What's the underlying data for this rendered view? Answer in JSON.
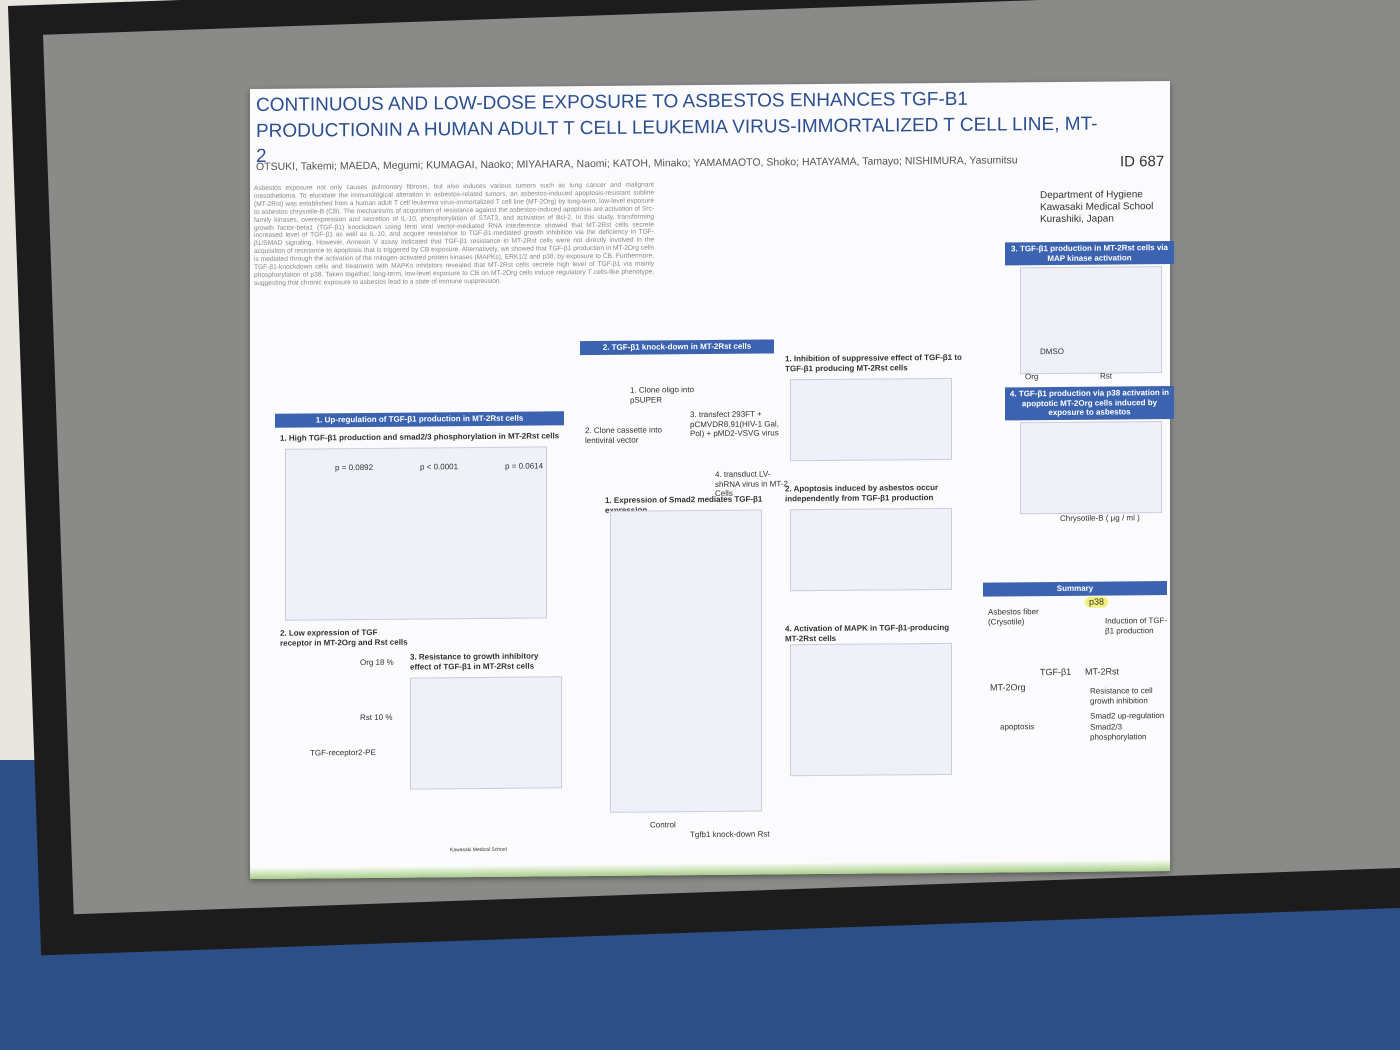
{
  "poster": {
    "title": "CONTINUOUS AND LOW-DOSE EXPOSURE TO ASBESTOS ENHANCES TGF-B1 PRODUCTIONIN A HUMAN ADULT T CELL LEUKEMIA VIRUS-IMMORTALIZED T CELL LINE, MT-2",
    "id": "ID 687",
    "authors": "OTSUKI, Takemi; MAEDA, Megumi; KUMAGAI, Naoko; MIYAHARA, Naomi; KATOH, Minako; YAMAMAOTO, Shoko; HATAYAMA, Tamayo; NISHIMURA, Yasumitsu",
    "affiliation": [
      "Department of Hygiene",
      "Kawasaki Medical School",
      "Kurashiki, Japan"
    ],
    "abstract": "Asbestos exposure not only causes pulmonary fibrosis, but also induces various tumors such as lung cancer and malignant mesothelioma. To elucidate the immunological alteration in asbestos-related tumors, an asbestos-induced apoptosis-resistant subline (MT-2Rst) was established from a human adult T cell leukemia virus-immortalized T cell line (MT-2Org) by long-term, low-level exposure to asbestos chrysotile-B (CB). The mechanisms of acquisition of resistance against the asbestos-induced apoptosis are activation of Src-family kinases, overexpression and secretion of IL-10, phosphorylation of STAT3, and activation of Bcl-2. In this study, transforming growth factor-beta1 (TGF-β1) knockdown using lenti viral vector-mediated RNA interference showed that MT-2Rst cells secrete increased level of TGF-β1 as well as IL-10, and acquire resistance to TGF-β1-mediated growth inhibition via the deficiency in TGF-β1/SMAD signaling. However, Annexin V assay indicated that TGF-β1 resistance in MT-2Rst cells were not directly involved in the acquisition of resistance to apoptosis that is triggered by CB exposure. Alternatively, we showed that TGF-β1 production in MT-2Org cells is mediated through the activation of the mitogen-activated protein kinases (MAPKs), ERK1/2 and p38, by exposure to CB. Furthermore, TGF-β1-knockdown cells and treatment with MAPKs inhibitors revealed that MT-2Rst cells secrete high level of TGF-β1 via mainly phosphorylation of p38. Taken together, long-term, low-level exposure to CB on MT-2Org cells induce regulatory T cells-like phenotype, suggesting that chronic exposure to asbestos lead to a state of immune suppression.",
    "sections": [
      {
        "header": "1. Up-regulation of TGF-β1 production in MT-2Rst cells",
        "subheads": [
          "1. High TGF-β1 production and smad2/3 phosphorylation in MT-2Rst cells",
          "2. Low expression of TGF receptor in MT-2Org and Rst cells",
          "3. Resistance to growth inhibitory effect of TGF-β1 in MT-2Rst cells"
        ],
        "labels": [
          "p = 0.0892",
          "p < 0.0001",
          "p = 0.0614",
          "Org 18 %",
          "Rst 10 %",
          "TGF-receptor2-PE"
        ]
      },
      {
        "header": "2. TGF-β1 knock-down in MT-2Rst cells",
        "subheads": [
          "1. Clone oligo into pSUPER",
          "2. Clone cassette into lentiviral vector",
          "3. transfect 293FT + pCMVDR8.91(HIV-1 Gal, Pol) + pMD2-VSVG virus",
          "4. transduct LV-shRNA virus in MT-2 Cells",
          "1. Expression of Smad2 mediates TGF-β1 expression",
          "1. Inhibition of suppressive effect of TGF-β1 to TGF-β1 producing MT-2Rst cells",
          "2. Apoptosis induced by asbestos occur independently from TGF-β1 production",
          "4. Activation of MAPK in TGF-β1-producing MT-2Rst cells"
        ],
        "labels": [
          "Control",
          "Tgfb1 knock-down Rst"
        ]
      },
      {
        "header": "3. TGF-β1 production in MT-2Rst cells via MAP kinase activation",
        "subheads": [],
        "labels": [
          "DMSO",
          "Org",
          "Rst"
        ]
      },
      {
        "header": "4. TGF-β1 production via p38 activation in apoptotic MT-2Org cells induced by exposure to asbestos",
        "subheads": [],
        "labels": [
          "Chrysotile-B ( μg / ml )"
        ]
      }
    ],
    "summary": {
      "header": "Summary",
      "labels": [
        "Asbestos fiber (Crysotile)",
        "MT-2Org",
        "TGF-β1",
        "MT-2Rst",
        "p38",
        "Induction of TGF-β1 production",
        "Resistance to cell growth inhibition",
        "Smad2 up-regulation",
        "Smad2/3 phosphorylation",
        "apoptosis"
      ]
    },
    "footer": "Kawasaki Medical School"
  }
}
